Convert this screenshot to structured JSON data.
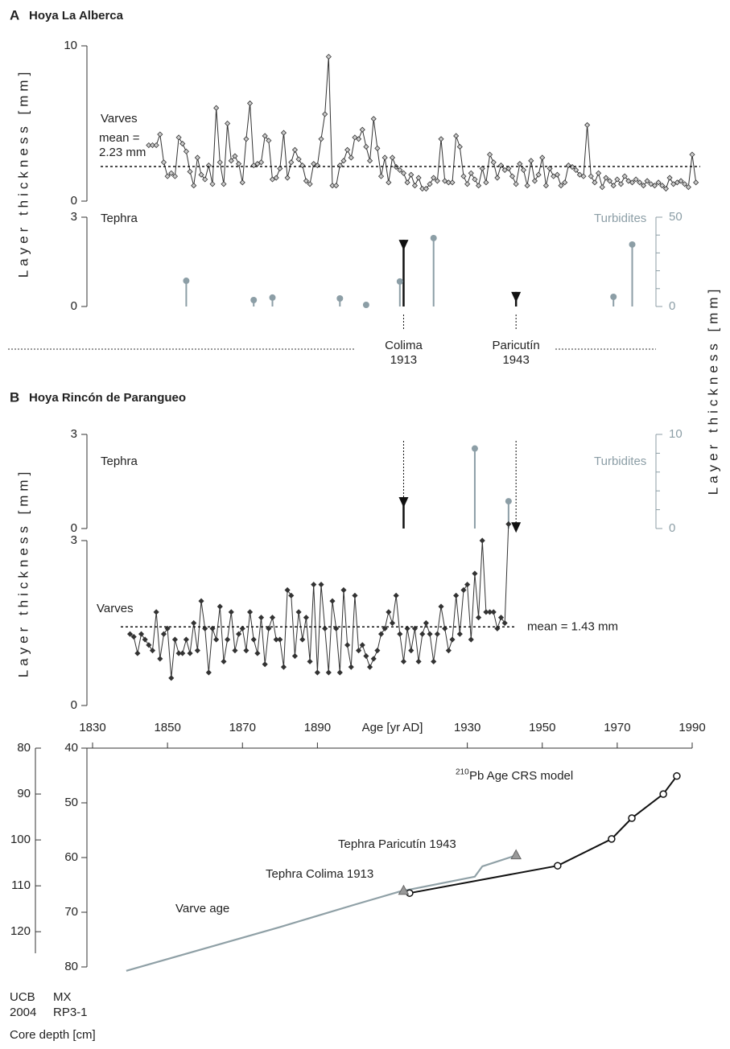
{
  "figure": {
    "panel_a": {
      "letter": "A",
      "title": "Hoya La Alberca"
    },
    "panel_b": {
      "letter": "B",
      "title": "Hoya Rincón de Parangueo"
    },
    "ylabel": "Layer thickness [mm]",
    "y2label": "Layer thickness [mm]"
  },
  "chart_data": [
    {
      "type": "line",
      "annotation": "Varves",
      "color": "#333",
      "marker_fill": "#ccc",
      "mean": 2.23,
      "mean_label": [
        "mean =",
        "2.23 mm"
      ],
      "ylim": [
        0,
        10
      ],
      "yticks": [
        0,
        10
      ],
      "x": [
        1845,
        1846,
        1847,
        1848,
        1849,
        1850,
        1851,
        1852,
        1853,
        1854,
        1855,
        1856,
        1857,
        1858,
        1859,
        1860,
        1861,
        1862,
        1863,
        1864,
        1865,
        1866,
        1867,
        1868,
        1869,
        1870,
        1871,
        1872,
        1873,
        1874,
        1875,
        1876,
        1877,
        1878,
        1879,
        1880,
        1881,
        1882,
        1883,
        1884,
        1885,
        1886,
        1887,
        1888,
        1889,
        1890,
        1891,
        1892,
        1893,
        1894,
        1895,
        1896,
        1897,
        1898,
        1899,
        1900,
        1901,
        1902,
        1903,
        1904,
        1905,
        1906,
        1907,
        1908,
        1909,
        1910,
        1911,
        1912,
        1913,
        1914,
        1915,
        1916,
        1917,
        1918,
        1919,
        1920,
        1921,
        1922,
        1923,
        1924,
        1925,
        1926,
        1927,
        1928,
        1929,
        1930,
        1931,
        1932,
        1933,
        1934,
        1935,
        1936,
        1937,
        1938,
        1939,
        1940,
        1941,
        1942,
        1943,
        1944,
        1945,
        1946,
        1947,
        1948,
        1949,
        1950,
        1951,
        1952,
        1953,
        1954,
        1955,
        1956,
        1957,
        1958,
        1959,
        1960,
        1961,
        1962,
        1963,
        1964,
        1965,
        1966,
        1967,
        1968,
        1969,
        1970,
        1971,
        1972,
        1973,
        1974,
        1975,
        1976,
        1977,
        1978,
        1979,
        1980,
        1981,
        1982,
        1983,
        1984,
        1985,
        1986,
        1987,
        1988,
        1989,
        1990,
        1991
      ],
      "values": [
        3.6,
        3.6,
        3.6,
        4.3,
        2.5,
        1.6,
        1.8,
        1.6,
        4.1,
        3.7,
        3.2,
        1.9,
        1.0,
        2.8,
        1.7,
        1.4,
        2.3,
        1.1,
        6.0,
        2.5,
        1.1,
        5.0,
        2.6,
        2.9,
        2.4,
        1.2,
        4.0,
        6.3,
        2.3,
        2.4,
        2.5,
        4.2,
        3.9,
        1.4,
        1.5,
        2.1,
        4.4,
        1.5,
        2.5,
        3.3,
        2.7,
        2.3,
        1.3,
        1.1,
        2.4,
        2.3,
        4.0,
        5.6,
        9.3,
        1.0,
        1.0,
        2.3,
        2.6,
        3.3,
        2.8,
        4.1,
        4.0,
        4.6,
        3.5,
        2.6,
        5.3,
        3.4,
        1.6,
        2.8,
        1.2,
        2.8,
        2.2,
        2.0,
        1.8,
        1.2,
        1.7,
        1.0,
        1.5,
        0.8,
        0.8,
        1.1,
        1.5,
        1.3,
        4.0,
        1.3,
        1.2,
        1.2,
        4.2,
        3.5,
        1.6,
        1.1,
        1.8,
        1.4,
        1.0,
        2.1,
        1.2,
        3.0,
        2.5,
        1.5,
        2.3,
        2.0,
        2.1,
        1.6,
        1.1,
        2.4,
        2.0,
        1.0,
        2.6,
        1.3,
        1.7,
        2.8,
        1.0,
        2.1,
        1.6,
        1.7,
        1.0,
        1.2,
        2.3,
        2.2,
        2.0,
        1.7,
        1.6,
        4.9,
        1.6,
        1.2,
        1.8,
        0.9,
        1.5,
        1.3,
        1.0,
        1.4,
        1.1,
        1.6,
        1.3,
        1.2,
        1.4,
        1.2,
        1.0,
        1.3,
        1.1,
        1.0,
        1.2,
        1.0,
        0.8,
        1.5,
        1.1,
        1.2,
        1.3,
        1.1,
        0.9,
        3.0,
        1.2
      ]
    },
    {
      "type": "stem",
      "ylim": [
        0,
        3
      ],
      "yticks": [
        0,
        3
      ],
      "y2lim": [
        0,
        50
      ],
      "y2ticks": [
        0,
        50
      ],
      "y2minor": [
        10,
        20,
        30,
        40
      ],
      "series": [
        {
          "name": "Tephra",
          "color": "#111",
          "marker": "triangle",
          "x": [
            1913,
            1943
          ],
          "values": [
            2.24,
            0.49
          ],
          "event_labels": [
            [
              "Colima",
              "1913"
            ],
            [
              "Paricutín",
              "1943"
            ]
          ]
        },
        {
          "name": "Turbidites",
          "color": "#8c9ea6",
          "marker": "circle",
          "axis": "y2",
          "x": [
            1855,
            1873,
            1878,
            1896,
            1903,
            1912,
            1921,
            1969,
            1974
          ],
          "values": [
            14.4,
            3.6,
            5,
            4.5,
            0.9,
            14,
            38.3,
            5.4,
            34.7
          ]
        }
      ]
    },
    {
      "type": "stem",
      "ylim": [
        0,
        3
      ],
      "yticks": [
        0,
        3
      ],
      "y2lim": [
        0,
        10
      ],
      "y2ticks": [
        0,
        10
      ],
      "y2minor": [
        2,
        4,
        6,
        8
      ],
      "series": [
        {
          "name": "Tephra",
          "color": "#111",
          "marker": "triangle",
          "x": [
            1913,
            1943
          ],
          "values": [
            1.0,
            0.2
          ]
        },
        {
          "name": "Turbidites",
          "color": "#8c9ea6",
          "marker": "circle",
          "axis": "y2",
          "x": [
            1932,
            1941
          ],
          "values": [
            8.5,
            2.9
          ]
        }
      ]
    },
    {
      "type": "line",
      "annotation": "Varves",
      "color": "#333",
      "marker_fill": "#333",
      "mean": 1.43,
      "mean_label": [
        "mean = 1.43 mm"
      ],
      "ylim": [
        0,
        3
      ],
      "yticks": [
        0,
        3
      ],
      "xlim": [
        1830,
        1990
      ],
      "xticks": [
        1830,
        1850,
        1870,
        1890,
        1930,
        1950,
        1970,
        1990
      ],
      "xlabel": "Age [yr AD]",
      "x": [
        1840,
        1841,
        1842,
        1843,
        1844,
        1845,
        1846,
        1847,
        1848,
        1849,
        1850,
        1851,
        1852,
        1853,
        1854,
        1855,
        1856,
        1857,
        1858,
        1859,
        1860,
        1861,
        1862,
        1863,
        1864,
        1865,
        1866,
        1867,
        1868,
        1869,
        1870,
        1871,
        1872,
        1873,
        1874,
        1875,
        1876,
        1877,
        1878,
        1879,
        1880,
        1881,
        1882,
        1883,
        1884,
        1885,
        1886,
        1887,
        1888,
        1889,
        1890,
        1891,
        1892,
        1893,
        1894,
        1895,
        1896,
        1897,
        1898,
        1899,
        1900,
        1901,
        1902,
        1903,
        1904,
        1905,
        1906,
        1907,
        1908,
        1909,
        1910,
        1911,
        1912,
        1913,
        1914,
        1915,
        1916,
        1917,
        1918,
        1919,
        1920,
        1921,
        1922,
        1923,
        1924,
        1925,
        1926,
        1927,
        1928,
        1929,
        1930,
        1931,
        1932,
        1933,
        1934,
        1935,
        1936,
        1937,
        1938,
        1939,
        1940,
        1941
      ],
      "values": [
        1.3,
        1.25,
        0.95,
        1.3,
        1.2,
        1.1,
        1.0,
        1.7,
        0.85,
        1.3,
        1.4,
        0.5,
        1.2,
        0.95,
        0.95,
        1.2,
        0.95,
        1.5,
        1.0,
        1.9,
        1.4,
        0.6,
        1.4,
        1.2,
        1.8,
        0.8,
        1.2,
        1.7,
        1.0,
        1.3,
        1.4,
        1.0,
        1.7,
        1.2,
        0.95,
        1.6,
        0.75,
        1.4,
        1.6,
        1.2,
        1.2,
        0.7,
        2.1,
        2.0,
        0.9,
        1.7,
        1.2,
        1.6,
        0.8,
        2.2,
        0.6,
        2.2,
        1.4,
        0.6,
        1.9,
        1.4,
        0.6,
        2.1,
        1.1,
        0.7,
        2.0,
        1.0,
        1.1,
        0.9,
        0.7,
        0.85,
        1.0,
        1.3,
        1.4,
        1.7,
        1.5,
        2.0,
        1.3,
        0.8,
        1.4,
        1.0,
        1.4,
        0.8,
        1.3,
        1.5,
        1.3,
        0.8,
        1.3,
        1.8,
        1.4,
        1.0,
        1.2,
        2.0,
        1.3,
        2.1,
        2.2,
        1.2,
        2.4,
        1.6,
        3.0,
        1.7,
        1.7,
        1.7,
        1.4,
        1.6,
        1.5,
        3.3
      ]
    },
    {
      "type": "agedepth",
      "ylim": [
        80,
        124.7
      ],
      "yticks": [
        80,
        90,
        100,
        110,
        120
      ],
      "y_inverted": true,
      "y2lim": [
        40,
        80
      ],
      "y2ticks": [
        40,
        50,
        60,
        70,
        80
      ],
      "y_axis_label": [
        "UCB",
        "2004"
      ],
      "y2_axis_label": [
        "MX",
        "RP3-1"
      ],
      "depth_label": "Core depth [cm]",
      "series": [
        {
          "name": "Varve age",
          "color": "#8fa0a6",
          "axis": "y2",
          "x": [
            1839,
            1860,
            1880,
            1900,
            1912,
            1932,
            1934,
            1943
          ],
          "values": [
            80.7,
            76.6,
            72.7,
            68.6,
            66.2,
            63.5,
            61.6,
            59.6
          ]
        },
        {
          "name_sup": "210",
          "name": "Pb Age CRS model",
          "color": "#111",
          "axis": "y2",
          "marker": "circle",
          "x": [
            1914.6,
            1954.1,
            1968.5,
            1973.9,
            1982.3,
            1985.9
          ],
          "values": [
            66.5,
            61.5,
            56.6,
            52.8,
            48.4,
            45.1
          ]
        },
        {
          "name": "Tephra Colima 1913",
          "color": "#999",
          "axis": "y2",
          "marker": "triangle",
          "x": [
            1913
          ],
          "values": [
            66.0
          ]
        },
        {
          "name": "Tephra Paricutín 1943",
          "color": "#999",
          "axis": "y2",
          "marker": "triangle",
          "x": [
            1943
          ],
          "values": [
            59.5
          ]
        }
      ]
    }
  ]
}
